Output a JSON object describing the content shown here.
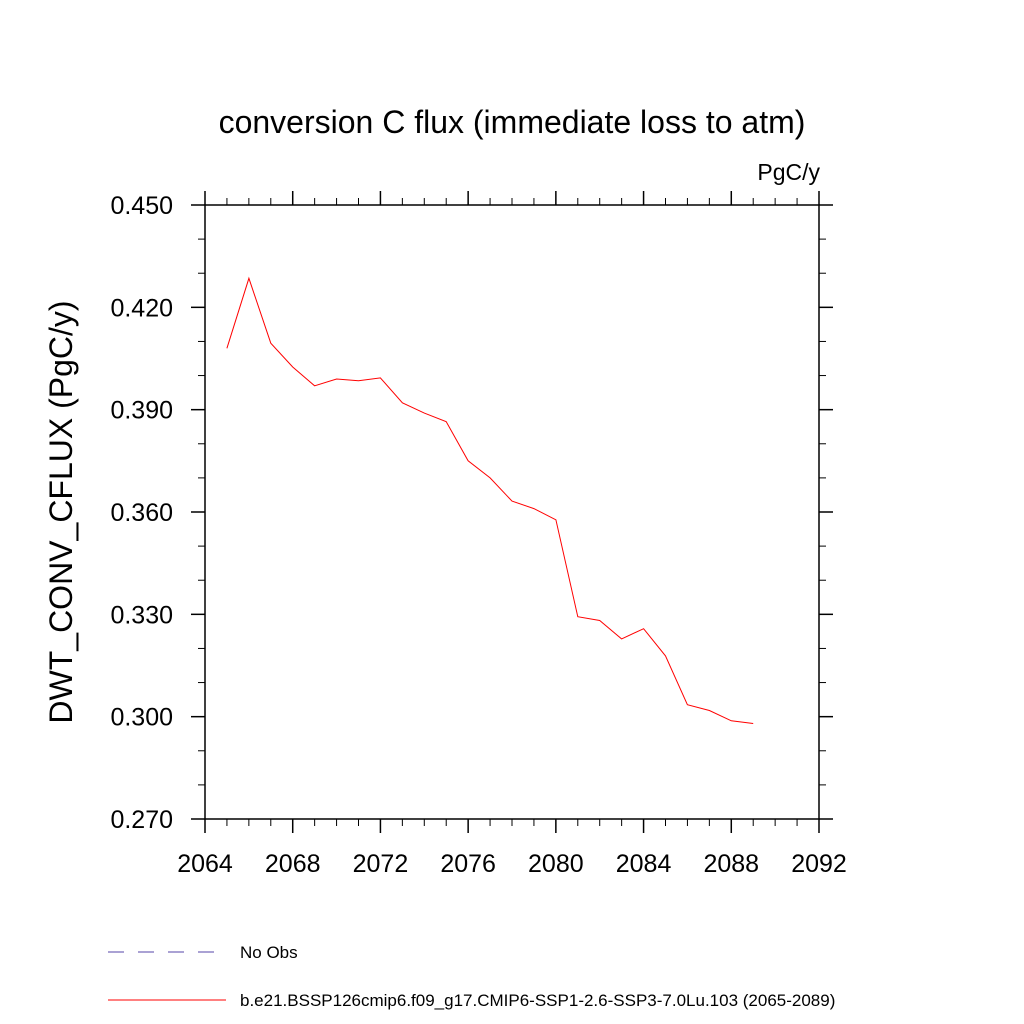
{
  "chart_data": {
    "type": "line",
    "title": "conversion C flux (immediate loss to atm)",
    "units": "PgC/y",
    "ylabel": "DWT_CONV_CFLUX  (PgC/y)",
    "xlabel": "",
    "xlim": [
      2064,
      2092
    ],
    "ylim": [
      0.27,
      0.45
    ],
    "xticks": [
      2064,
      2068,
      2072,
      2076,
      2080,
      2084,
      2088,
      2092
    ],
    "xtick_labels": [
      "2064",
      "2068",
      "2072",
      "2076",
      "2080",
      "2084",
      "2088",
      "2092"
    ],
    "yticks": [
      0.27,
      0.3,
      0.33,
      0.36,
      0.39,
      0.42,
      0.45
    ],
    "ytick_labels": [
      "0.270",
      "0.300",
      "0.330",
      "0.360",
      "0.390",
      "0.420",
      "0.450"
    ],
    "grid": false,
    "legend_position": "bottom",
    "series": [
      {
        "name": "b.e21.BSSP126cmip6.f09_g17.CMIP6-SSP1-2.6-SSP3-7.0Lu.103 (2065-2089)",
        "color": "#ff0000",
        "x": [
          2065,
          2066,
          2067,
          2068,
          2069,
          2070,
          2071,
          2072,
          2073,
          2074,
          2075,
          2076,
          2077,
          2078,
          2079,
          2080,
          2081,
          2082,
          2083,
          2084,
          2085,
          2086,
          2087,
          2088,
          2089
        ],
        "y": [
          0.408,
          0.4285,
          0.4095,
          0.4025,
          0.397,
          0.399,
          0.3985,
          0.3993,
          0.392,
          0.389,
          0.3865,
          0.375,
          0.37,
          0.3632,
          0.361,
          0.3577,
          0.3293,
          0.3282,
          0.3228,
          0.3258,
          0.3178,
          0.3035,
          0.3018,
          0.2988,
          0.298
        ]
      }
    ],
    "legend": [
      {
        "label": "No Obs",
        "color": "#5544aa",
        "style": "dashed"
      },
      {
        "label": "b.e21.BSSP126cmip6.f09_g17.CMIP6-SSP1-2.6-SSP3-7.0Lu.103 (2065-2089)",
        "color": "#ff0000",
        "style": "solid"
      }
    ]
  }
}
